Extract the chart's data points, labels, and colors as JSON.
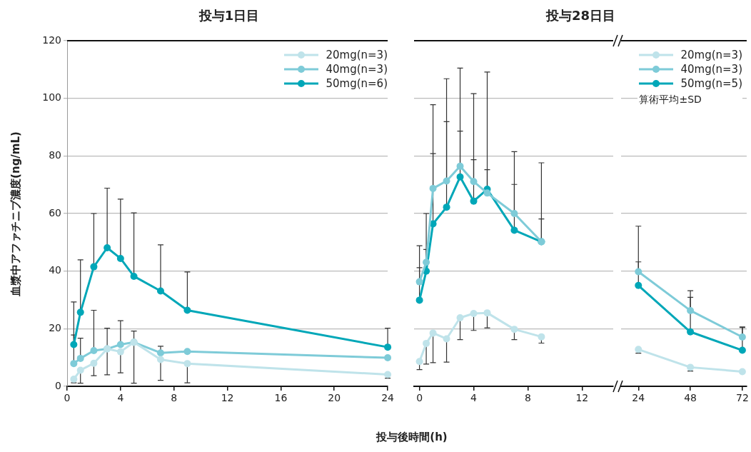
{
  "chart_data": [
    {
      "type": "line",
      "title": "投与1日目",
      "xlabel": "投与後時間(h)",
      "ylabel": "血漿中アファチニブ濃度(ng/mL)",
      "x": [
        0.5,
        1,
        2,
        3,
        4,
        5,
        7,
        9,
        24
      ],
      "xlim": [
        0,
        24
      ],
      "xticks": [
        0,
        4,
        8,
        12,
        16,
        20,
        24
      ],
      "ylim": [
        0,
        120
      ],
      "yticks": [
        0,
        20,
        40,
        60,
        80,
        100,
        120
      ],
      "grid": "y",
      "legend": "top right",
      "marker": "circle",
      "line_style": "solid",
      "series": [
        {
          "name": "20mg(n=3)",
          "color": "#bfe3ea",
          "values": [
            2.5,
            5.6,
            8.0,
            13.0,
            12.0,
            15.3,
            9.3,
            7.9,
            4.1
          ],
          "errors": [
            [
              1.2,
              2.5
            ],
            [
              1.1,
              5.6
            ],
            [
              3.7,
              8.0
            ],
            [
              4.0,
              13.0
            ],
            [
              4.7,
              12.0
            ],
            [
              1.1,
              15.3
            ],
            [
              2.1,
              9.3
            ],
            [
              1.2,
              7.9
            ],
            [
              2.8,
              4.1
            ]
          ]
        },
        {
          "name": "40mg(n=3)",
          "color": "#7ecbd8",
          "values": [
            7.9,
            9.7,
            12.4,
            13.0,
            14.5,
            15.3,
            11.6,
            12.1,
            9.9
          ],
          "errors": [
            [
              7.9,
              17.8
            ],
            [
              9.7,
              16.7
            ],
            [
              12.4,
              26.4
            ],
            [
              13.0,
              20.2
            ],
            [
              14.5,
              22.8
            ],
            [
              15.3,
              19.2
            ],
            [
              11.6,
              13.9
            ],
            null,
            null
          ]
        },
        {
          "name": "50mg(n=6)",
          "color": "#00a7b8",
          "values": [
            14.5,
            25.7,
            41.5,
            48.1,
            44.4,
            38.2,
            33.1,
            26.4,
            13.6
          ],
          "errors": [
            [
              14.5,
              29.3
            ],
            [
              25.7,
              43.9
            ],
            [
              41.5,
              60.0
            ],
            [
              48.1,
              68.8
            ],
            [
              44.4,
              65.0
            ],
            [
              38.2,
              60.2
            ],
            [
              33.1,
              49.1
            ],
            [
              26.4,
              39.7
            ],
            [
              13.6,
              20.2
            ]
          ]
        }
      ]
    },
    {
      "type": "line",
      "title": "投与28日目",
      "x": [
        0,
        0.5,
        1,
        2,
        3,
        4,
        5,
        7,
        9
      ],
      "xlim": [
        -0.4,
        14.3
      ],
      "xticks": [
        0,
        4,
        8,
        12
      ],
      "ylim": [
        0,
        120
      ],
      "yticks": [
        0,
        20,
        40,
        60,
        80,
        100,
        120
      ],
      "grid": "y",
      "tick_labels": "x",
      "marker": "circle",
      "line_style": "solid",
      "series": [
        {
          "color": "#bfe3ea",
          "values": [
            8.6,
            14.9,
            18.5,
            16.5,
            23.8,
            25.3,
            25.5,
            19.8,
            17.2
          ],
          "errors": [
            [
              5.8,
              8.6
            ],
            [
              7.7,
              14.9
            ],
            [
              8.2,
              18.5
            ],
            [
              8.4,
              16.5
            ],
            [
              16.2,
              23.8
            ],
            [
              19.4,
              25.3
            ],
            [
              20.3,
              25.5
            ],
            [
              16.2,
              19.8
            ],
            [
              15.0,
              17.2
            ]
          ]
        },
        {
          "color": "#7ecbd8",
          "values": [
            36.3,
            43.1,
            68.7,
            71.3,
            76.4,
            71.1,
            67.1,
            60.0,
            50.2
          ],
          "errors": [
            [
              36.3,
              41.2
            ],
            [
              43.1,
              47.5
            ],
            [
              68.7,
              97.8
            ],
            [
              71.3,
              106.8
            ],
            [
              76.4,
              110.5
            ],
            [
              71.1,
              101.6
            ],
            [
              67.1,
              109.1
            ],
            [
              60.0,
              81.5
            ],
            [
              50.2,
              77.6
            ]
          ]
        },
        {
          "color": "#00a7b8",
          "values": [
            29.9,
            40.0,
            56.4,
            62.2,
            72.7,
            64.3,
            68.4,
            54.2,
            50.2
          ],
          "errors": [
            [
              29.9,
              48.8
            ],
            [
              40.0,
              60.0
            ],
            [
              56.4,
              80.8
            ],
            [
              62.2,
              91.9
            ],
            [
              72.7,
              88.6
            ],
            [
              64.3,
              78.7
            ],
            [
              68.4,
              75.2
            ],
            [
              54.2,
              70.1
            ],
            [
              50.2,
              58.1
            ]
          ]
        }
      ]
    },
    {
      "type": "line",
      "x": [
        24,
        48,
        72
      ],
      "xlim": [
        16,
        74
      ],
      "xticks": [
        24,
        48,
        72
      ],
      "ylim": [
        0,
        120
      ],
      "yticks": [
        0,
        20,
        40,
        60,
        80,
        100,
        120
      ],
      "grid": "y",
      "tick_labels": "x",
      "legend": "top right",
      "marker": "circle",
      "line_style": "solid",
      "annotations": [
        "算術平均±SD"
      ],
      "series": [
        {
          "name": "20mg(n=3)",
          "color": "#bfe3ea",
          "values": [
            12.8,
            6.6,
            5.1
          ],
          "errors": [
            [
              11.5,
              12.8
            ],
            [
              5.3,
              6.6
            ],
            null
          ]
        },
        {
          "name": "40mg(n=3)",
          "color": "#7ecbd8",
          "values": [
            39.8,
            26.3,
            17.1
          ],
          "errors": [
            [
              39.8,
              55.6
            ],
            [
              26.3,
              33.2
            ],
            [
              17.1,
              20.4
            ]
          ]
        },
        {
          "name": "50mg(n=5)",
          "color": "#00a7b8",
          "values": [
            35.0,
            18.9,
            12.5
          ],
          "errors": [
            [
              35.0,
              43.2
            ],
            [
              18.9,
              30.9
            ],
            [
              12.5,
              20.6
            ]
          ]
        }
      ]
    }
  ]
}
